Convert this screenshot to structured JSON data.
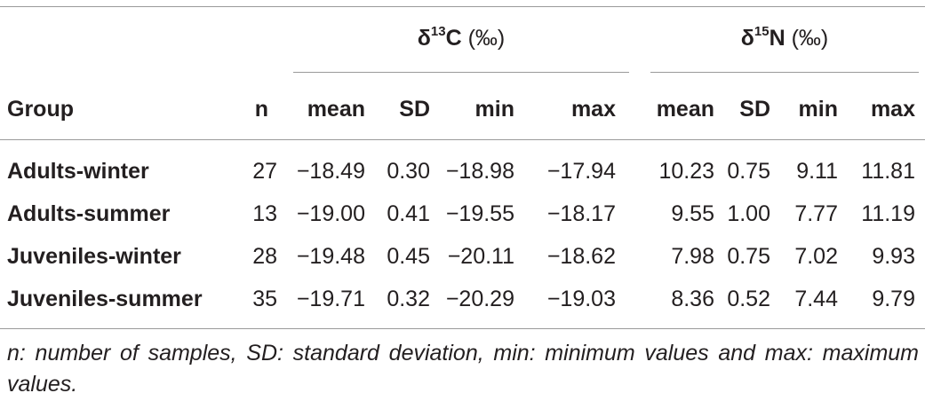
{
  "table": {
    "group_header": "Group",
    "n_header": "n",
    "c_header": {
      "symbol": "δ",
      "sup": "13",
      "element": "C",
      "unit": " (‰)"
    },
    "n15_header": {
      "symbol": "δ",
      "sup": "15",
      "element": "N",
      "unit": " (‰)"
    },
    "sub_headers": [
      "mean",
      "SD",
      "min",
      "max",
      "mean",
      "SD",
      "min",
      "max"
    ],
    "rows": [
      {
        "group": "Adults-winter",
        "n": "27",
        "values": [
          "−18.49",
          "0.30",
          "−18.98",
          "−17.94",
          "10.23",
          "0.75",
          "9.11",
          "11.81"
        ]
      },
      {
        "group": "Adults-summer",
        "n": "13",
        "values": [
          "−19.00",
          "0.41",
          "−19.55",
          "−18.17",
          "9.55",
          "1.00",
          "7.77",
          "11.19"
        ]
      },
      {
        "group": "Juveniles-winter",
        "n": "28",
        "values": [
          "−19.48",
          "0.45",
          "−20.11",
          "−18.62",
          "7.98",
          "0.75",
          "7.02",
          "9.93"
        ]
      },
      {
        "group": "Juveniles-summer",
        "n": "35",
        "values": [
          "−19.71",
          "0.32",
          "−20.29",
          "−19.03",
          "8.36",
          "0.52",
          "7.44",
          "9.79"
        ]
      }
    ]
  },
  "footnote": "n: number of samples, SD: standard deviation, min: minimum values and max: maximum values."
}
